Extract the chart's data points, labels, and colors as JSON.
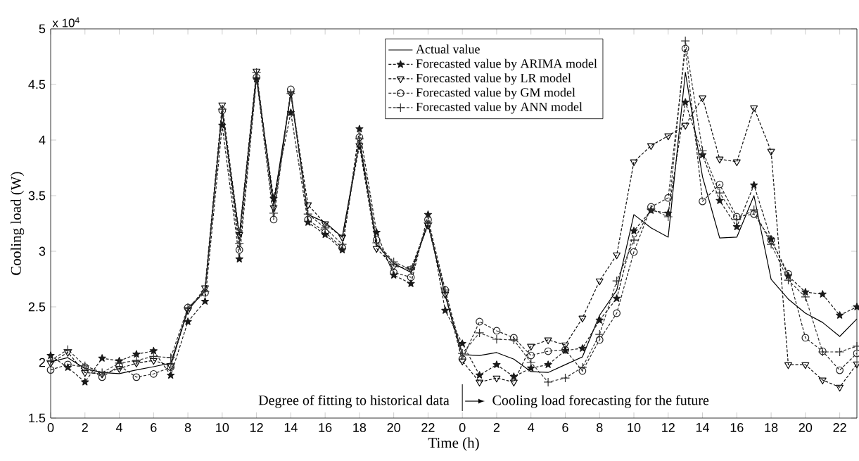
{
  "chart_data": {
    "type": "line",
    "xlabel": "Time (h)",
    "ylabel": "Cooling load (W)",
    "categories": [
      "0",
      null,
      "2",
      null,
      "4",
      null,
      "6",
      null,
      "8",
      null,
      "10",
      null,
      "12",
      null,
      "14",
      null,
      "16",
      null,
      "18",
      null,
      "20",
      null,
      "22",
      null,
      "0",
      null,
      "2",
      null,
      "4",
      null,
      "6",
      null,
      "8",
      null,
      "10",
      null,
      "12",
      null,
      "14",
      null,
      "16",
      null,
      "18",
      null,
      "20",
      null,
      "22",
      null
    ],
    "ylim": [
      1.5,
      5
    ],
    "yticks": [
      1.5,
      2,
      2.5,
      3,
      3.5,
      4,
      4.5,
      5
    ],
    "legend": "top",
    "series": [
      {
        "name": "Actual value",
        "color": "#000000",
        "marker": "none",
        "line_style": "solid",
        "values": [
          2.006,
          2.043,
          1.945,
          1.909,
          1.9,
          1.933,
          1.962,
          1.994,
          2.47,
          2.65,
          4.26,
          3.14,
          4.585,
          3.43,
          4.418,
          3.33,
          3.26,
          3.127,
          3.987,
          3.063,
          2.89,
          2.81,
          3.247,
          2.6,
          2.07,
          2.063,
          2.089,
          2.03,
          1.918,
          1.91,
          1.98,
          2.05,
          2.424,
          2.65,
          3.33,
          3.21,
          3.127,
          4.608,
          3.67,
          3.12,
          3.127,
          3.5,
          2.747,
          2.57,
          2.443,
          2.36,
          2.234,
          2.392
        ]
      },
      {
        "name": "Forecasted value by ARIMA model",
        "color": "#1a1a1a",
        "marker": "star",
        "line_style": "dashed",
        "values": [
          2.062,
          1.955,
          1.824,
          2.038,
          2.014,
          2.074,
          2.104,
          1.885,
          2.367,
          2.55,
          4.133,
          2.93,
          4.55,
          3.475,
          4.247,
          3.26,
          3.15,
          3.013,
          4.1,
          3.17,
          2.785,
          2.709,
          3.33,
          2.468,
          2.17,
          1.886,
          1.98,
          1.873,
          1.949,
          1.98,
          2.108,
          2.127,
          2.38,
          2.576,
          3.183,
          3.367,
          3.342,
          4.34,
          3.867,
          3.456,
          3.22,
          3.595,
          3.108,
          2.778,
          2.633,
          2.614,
          2.424,
          2.5
        ]
      },
      {
        "name": "Forecasted value by LR model",
        "color": "#0d0d0d",
        "marker": "triangle",
        "line_style": "dashed",
        "values": [
          1.994,
          2.091,
          1.909,
          1.897,
          1.945,
          1.994,
          2.018,
          1.97,
          2.468,
          2.671,
          4.316,
          3.15,
          4.62,
          3.392,
          4.418,
          3.418,
          3.247,
          3.127,
          3.95,
          3.025,
          2.867,
          2.842,
          3.234,
          2.614,
          2.013,
          1.823,
          1.86,
          1.823,
          2.146,
          2.203,
          2.158,
          2.399,
          2.734,
          2.968,
          3.804,
          3.95,
          4.038,
          4.133,
          4.38,
          3.829,
          3.804,
          4.29,
          3.899,
          1.98,
          1.98,
          1.842,
          1.778,
          1.987
        ]
      },
      {
        "name": "Forecasted value by GM model",
        "color": "#262626",
        "marker": "circle",
        "line_style": "dashed",
        "values": [
          1.933,
          1.982,
          1.958,
          1.868,
          1.97,
          1.868,
          1.897,
          1.958,
          2.494,
          2.627,
          4.266,
          3.013,
          4.563,
          3.285,
          4.456,
          3.285,
          3.17,
          3.031,
          4.025,
          3.101,
          2.81,
          2.766,
          3.285,
          2.652,
          2.032,
          2.367,
          2.285,
          2.222,
          2.063,
          2.101,
          2.114,
          1.924,
          2.203,
          2.443,
          2.994,
          3.399,
          3.48,
          4.823,
          3.449,
          3.601,
          3.31,
          3.335,
          3.101,
          2.797,
          2.222,
          2.101,
          1.93,
          2.082
        ]
      },
      {
        "name": "Forecasted value by ANN model",
        "color": "#333333",
        "marker": "cross",
        "line_style": "dashed",
        "values": [
          2.018,
          2.116,
          1.97,
          1.909,
          1.994,
          2.018,
          2.055,
          2.043,
          2.494,
          2.639,
          4.278,
          3.07,
          4.608,
          3.342,
          4.418,
          3.335,
          3.21,
          3.063,
          4.012,
          3.076,
          2.905,
          2.835,
          3.26,
          2.652,
          2.082,
          2.266,
          2.209,
          2.203,
          2.0,
          1.823,
          1.86,
          1.956,
          2.253,
          2.734,
          3.101,
          3.38,
          3.31,
          4.892,
          3.905,
          3.525,
          3.285,
          3.373,
          3.063,
          2.74,
          2.589,
          2.095,
          2.095,
          2.146
        ]
      }
    ],
    "annotations": [
      "x 10$^{4}$",
      "Degree of fitting to historical data",
      "Cooling load forecasting for the future"
    ]
  }
}
